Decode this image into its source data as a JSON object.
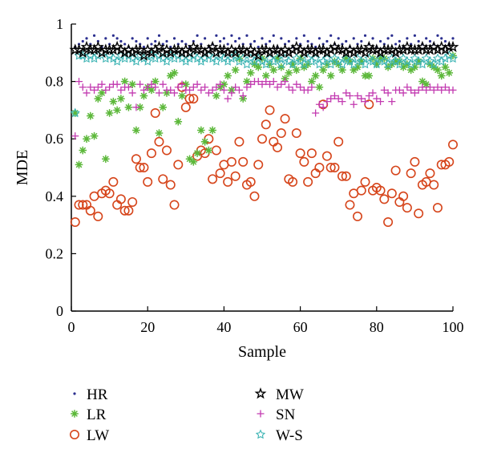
{
  "chart_data": {
    "type": "scatter",
    "xlabel": "Sample",
    "ylabel": "MDE",
    "xlim": [
      0,
      100
    ],
    "ylim": [
      0,
      1
    ],
    "xticks": [
      "0",
      "20",
      "40",
      "60",
      "80",
      "100"
    ],
    "yticks": [
      "0",
      "0.2",
      "0.4",
      "0.6",
      "0.8",
      "1"
    ],
    "grid": false,
    "legend_position": "bottom",
    "series": [
      {
        "name": "HR",
        "marker": "dot",
        "color": "#2b2f8f",
        "x": [
          1,
          2,
          3,
          4,
          5,
          6,
          7,
          8,
          9,
          10,
          11,
          12,
          13,
          14,
          15,
          16,
          17,
          18,
          19,
          20,
          21,
          22,
          23,
          24,
          25,
          26,
          27,
          28,
          29,
          30,
          31,
          32,
          33,
          34,
          35,
          36,
          37,
          38,
          39,
          40,
          41,
          42,
          43,
          44,
          45,
          46,
          47,
          48,
          49,
          50,
          51,
          52,
          53,
          54,
          55,
          56,
          57,
          58,
          59,
          60,
          61,
          62,
          63,
          64,
          65,
          66,
          67,
          68,
          69,
          70,
          71,
          72,
          73,
          74,
          75,
          76,
          77,
          78,
          79,
          80,
          81,
          82,
          83,
          84,
          85,
          86,
          87,
          88,
          89,
          90,
          91,
          92,
          93,
          94,
          95,
          96,
          97,
          98,
          99,
          100
        ],
        "y": [
          0.92,
          0.93,
          0.94,
          0.95,
          0.93,
          0.96,
          0.94,
          0.92,
          0.95,
          0.93,
          0.96,
          0.95,
          0.94,
          0.93,
          0.92,
          0.95,
          0.94,
          0.93,
          0.92,
          0.95,
          0.93,
          0.94,
          0.96,
          0.93,
          0.94,
          0.92,
          0.95,
          0.93,
          0.94,
          0.93,
          0.92,
          0.94,
          0.96,
          0.93,
          0.95,
          0.92,
          0.93,
          0.96,
          0.94,
          0.95,
          0.93,
          0.96,
          0.94,
          0.95,
          0.93,
          0.96,
          0.93,
          0.94,
          0.92,
          0.95,
          0.93,
          0.94,
          0.96,
          0.92,
          0.95,
          0.93,
          0.94,
          0.92,
          0.95,
          0.93,
          0.96,
          0.94,
          0.93,
          0.92,
          0.95,
          0.93,
          0.94,
          0.96,
          0.93,
          0.95,
          0.93,
          0.94,
          0.92,
          0.95,
          0.93,
          0.94,
          0.96,
          0.93,
          0.95,
          0.92,
          0.94,
          0.93,
          0.95,
          0.96,
          0.93,
          0.94,
          0.92,
          0.95,
          0.93,
          0.96,
          0.94,
          0.93,
          0.95,
          0.94,
          0.93,
          0.96,
          0.95,
          0.94,
          0.93,
          0.95
        ]
      },
      {
        "name": "LR",
        "marker": "asterisk",
        "color": "#5cb83a",
        "x": [
          1,
          2,
          3,
          4,
          5,
          6,
          7,
          8,
          9,
          10,
          11,
          12,
          13,
          14,
          15,
          16,
          17,
          18,
          19,
          20,
          21,
          22,
          23,
          24,
          25,
          26,
          27,
          28,
          29,
          30,
          31,
          32,
          33,
          34,
          35,
          36,
          37,
          38,
          39,
          40,
          41,
          42,
          43,
          44,
          45,
          46,
          47,
          48,
          49,
          50,
          51,
          52,
          53,
          54,
          55,
          56,
          57,
          58,
          59,
          60,
          61,
          62,
          63,
          64,
          65,
          66,
          67,
          68,
          69,
          70,
          71,
          72,
          73,
          74,
          75,
          76,
          77,
          78,
          79,
          80,
          81,
          82,
          83,
          84,
          85,
          86,
          87,
          88,
          89,
          90,
          91,
          92,
          93,
          94,
          95,
          96,
          97,
          98,
          99,
          100
        ],
        "y": [
          0.69,
          0.51,
          0.56,
          0.6,
          0.68,
          0.61,
          0.74,
          0.76,
          0.53,
          0.69,
          0.73,
          0.7,
          0.74,
          0.8,
          0.71,
          0.79,
          0.63,
          0.71,
          0.75,
          0.78,
          0.77,
          0.8,
          0.62,
          0.71,
          0.76,
          0.82,
          0.83,
          0.66,
          0.75,
          0.79,
          0.53,
          0.52,
          0.55,
          0.63,
          0.59,
          0.56,
          0.63,
          0.75,
          0.78,
          0.79,
          0.82,
          0.77,
          0.84,
          0.88,
          0.74,
          0.8,
          0.83,
          0.86,
          0.85,
          0.88,
          0.82,
          0.86,
          0.84,
          0.88,
          0.85,
          0.81,
          0.83,
          0.86,
          0.84,
          0.88,
          0.85,
          0.86,
          0.8,
          0.82,
          0.78,
          0.84,
          0.86,
          0.82,
          0.87,
          0.86,
          0.84,
          0.88,
          0.87,
          0.84,
          0.85,
          0.87,
          0.82,
          0.82,
          0.88,
          0.86,
          0.88,
          0.88,
          0.85,
          0.86,
          0.87,
          0.87,
          0.85,
          0.86,
          0.84,
          0.85,
          0.87,
          0.8,
          0.79,
          0.86,
          0.85,
          0.84,
          0.82,
          0.85,
          0.83,
          0.89
        ]
      },
      {
        "name": "LW",
        "marker": "circle",
        "color": "#d6451b",
        "x": [
          1,
          2,
          3,
          4,
          5,
          6,
          7,
          8,
          9,
          10,
          11,
          12,
          13,
          14,
          15,
          16,
          17,
          18,
          19,
          20,
          21,
          22,
          23,
          24,
          25,
          26,
          27,
          28,
          29,
          30,
          31,
          32,
          33,
          34,
          35,
          36,
          37,
          38,
          39,
          40,
          41,
          42,
          43,
          44,
          45,
          46,
          47,
          48,
          49,
          50,
          51,
          52,
          53,
          54,
          55,
          56,
          57,
          58,
          59,
          60,
          61,
          62,
          63,
          64,
          65,
          66,
          67,
          68,
          69,
          70,
          71,
          72,
          73,
          74,
          75,
          76,
          77,
          78,
          79,
          80,
          81,
          82,
          83,
          84,
          85,
          86,
          87,
          88,
          89,
          90,
          91,
          92,
          93,
          94,
          95,
          96,
          97,
          98,
          99,
          100
        ],
        "y": [
          0.31,
          0.37,
          0.37,
          0.37,
          0.35,
          0.4,
          0.33,
          0.41,
          0.42,
          0.41,
          0.45,
          0.37,
          0.39,
          0.35,
          0.35,
          0.38,
          0.53,
          0.5,
          0.5,
          0.45,
          0.55,
          0.69,
          0.59,
          0.46,
          0.56,
          0.44,
          0.37,
          0.51,
          0.78,
          0.71,
          0.74,
          0.74,
          0.54,
          0.56,
          0.55,
          0.6,
          0.46,
          0.56,
          0.48,
          0.51,
          0.45,
          0.52,
          0.47,
          0.59,
          0.52,
          0.44,
          0.45,
          0.4,
          0.51,
          0.6,
          0.65,
          0.7,
          0.59,
          0.57,
          0.62,
          0.67,
          0.46,
          0.45,
          0.62,
          0.55,
          0.52,
          0.45,
          0.55,
          0.48,
          0.5,
          0.72,
          0.54,
          0.5,
          0.5,
          0.59,
          0.47,
          0.47,
          0.37,
          0.41,
          0.33,
          0.42,
          0.45,
          0.72,
          0.42,
          0.43,
          0.42,
          0.39,
          0.31,
          0.41,
          0.49,
          0.38,
          0.4,
          0.36,
          0.48,
          0.52,
          0.34,
          0.44,
          0.45,
          0.48,
          0.44,
          0.36,
          0.51,
          0.51,
          0.52,
          0.58
        ]
      },
      {
        "name": "MW",
        "marker": "star",
        "color": "#000000",
        "x": [
          1,
          2,
          3,
          4,
          5,
          6,
          7,
          8,
          9,
          10,
          11,
          12,
          13,
          14,
          15,
          16,
          17,
          18,
          19,
          20,
          21,
          22,
          23,
          24,
          25,
          26,
          27,
          28,
          29,
          30,
          31,
          32,
          33,
          34,
          35,
          36,
          37,
          38,
          39,
          40,
          41,
          42,
          43,
          44,
          45,
          46,
          47,
          48,
          49,
          50,
          51,
          52,
          53,
          54,
          55,
          56,
          57,
          58,
          59,
          60,
          61,
          62,
          63,
          64,
          65,
          66,
          67,
          68,
          69,
          70,
          71,
          72,
          73,
          74,
          75,
          76,
          77,
          78,
          79,
          80,
          81,
          82,
          83,
          84,
          85,
          86,
          87,
          88,
          89,
          90,
          91,
          92,
          93,
          94,
          95,
          96,
          97,
          98,
          99,
          100
        ],
        "y": [
          0.91,
          0.91,
          0.9,
          0.92,
          0.91,
          0.91,
          0.92,
          0.9,
          0.91,
          0.91,
          0.91,
          0.92,
          0.91,
          0.9,
          0.91,
          0.9,
          0.91,
          0.91,
          0.89,
          0.91,
          0.9,
          0.91,
          0.92,
          0.9,
          0.91,
          0.9,
          0.91,
          0.91,
          0.9,
          0.91,
          0.9,
          0.92,
          0.91,
          0.91,
          0.9,
          0.91,
          0.92,
          0.9,
          0.91,
          0.91,
          0.9,
          0.91,
          0.9,
          0.91,
          0.91,
          0.9,
          0.91,
          0.9,
          0.89,
          0.91,
          0.91,
          0.9,
          0.91,
          0.91,
          0.9,
          0.91,
          0.9,
          0.91,
          0.92,
          0.91,
          0.9,
          0.91,
          0.91,
          0.9,
          0.91,
          0.91,
          0.9,
          0.91,
          0.92,
          0.91,
          0.91,
          0.9,
          0.91,
          0.9,
          0.91,
          0.91,
          0.9,
          0.92,
          0.91,
          0.91,
          0.9,
          0.91,
          0.91,
          0.91,
          0.9,
          0.91,
          0.91,
          0.92,
          0.91,
          0.91,
          0.91,
          0.92,
          0.91,
          0.91,
          0.92,
          0.91,
          0.92,
          0.91,
          0.92,
          0.92
        ]
      },
      {
        "name": "SN",
        "marker": "plus",
        "color": "#c23ab0",
        "x": [
          1,
          2,
          3,
          4,
          5,
          6,
          7,
          8,
          9,
          10,
          11,
          12,
          13,
          14,
          15,
          16,
          17,
          18,
          19,
          20,
          21,
          22,
          23,
          24,
          25,
          26,
          27,
          28,
          29,
          30,
          31,
          32,
          33,
          34,
          35,
          36,
          37,
          38,
          39,
          40,
          41,
          42,
          43,
          44,
          45,
          46,
          47,
          48,
          49,
          50,
          51,
          52,
          53,
          54,
          55,
          56,
          57,
          58,
          59,
          60,
          61,
          62,
          63,
          64,
          65,
          66,
          67,
          68,
          69,
          70,
          71,
          72,
          73,
          74,
          75,
          76,
          77,
          78,
          79,
          80,
          81,
          82,
          83,
          84,
          85,
          86,
          87,
          88,
          89,
          90,
          91,
          92,
          93,
          94,
          95,
          96,
          97,
          98,
          99,
          100
        ],
        "y": [
          0.61,
          0.8,
          0.78,
          0.76,
          0.78,
          0.77,
          0.78,
          0.79,
          0.77,
          0.78,
          0.79,
          0.79,
          0.77,
          0.78,
          0.78,
          0.76,
          0.71,
          0.79,
          0.77,
          0.78,
          0.79,
          0.78,
          0.76,
          0.79,
          0.77,
          0.77,
          0.76,
          0.78,
          0.79,
          0.77,
          0.77,
          0.78,
          0.79,
          0.77,
          0.78,
          0.76,
          0.77,
          0.78,
          0.79,
          0.77,
          0.74,
          0.76,
          0.78,
          0.77,
          0.75,
          0.78,
          0.79,
          0.8,
          0.8,
          0.79,
          0.8,
          0.79,
          0.8,
          0.78,
          0.79,
          0.8,
          0.78,
          0.77,
          0.79,
          0.78,
          0.77,
          0.77,
          0.78,
          0.69,
          0.72,
          0.71,
          0.73,
          0.74,
          0.75,
          0.74,
          0.73,
          0.76,
          0.75,
          0.72,
          0.75,
          0.74,
          0.73,
          0.75,
          0.76,
          0.74,
          0.73,
          0.77,
          0.76,
          0.73,
          0.77,
          0.77,
          0.76,
          0.78,
          0.77,
          0.76,
          0.77,
          0.78,
          0.77,
          0.78,
          0.77,
          0.78,
          0.77,
          0.78,
          0.77,
          0.77
        ]
      },
      {
        "name": "W-S",
        "marker": "star-outline",
        "color": "#3db4b4",
        "x": [
          1,
          2,
          3,
          4,
          5,
          6,
          7,
          8,
          9,
          10,
          11,
          12,
          13,
          14,
          15,
          16,
          17,
          18,
          19,
          20,
          21,
          22,
          23,
          24,
          25,
          26,
          27,
          28,
          29,
          30,
          31,
          32,
          33,
          34,
          35,
          36,
          37,
          38,
          39,
          40,
          41,
          42,
          43,
          44,
          45,
          46,
          47,
          48,
          49,
          50,
          51,
          52,
          53,
          54,
          55,
          56,
          57,
          58,
          59,
          60,
          61,
          62,
          63,
          64,
          65,
          66,
          67,
          68,
          69,
          70,
          71,
          72,
          73,
          74,
          75,
          76,
          77,
          78,
          79,
          80,
          81,
          82,
          83,
          84,
          85,
          86,
          87,
          88,
          89,
          90,
          91,
          92,
          93,
          94,
          95,
          96,
          97,
          98,
          99,
          100
        ],
        "y": [
          0.69,
          0.89,
          0.89,
          0.88,
          0.89,
          0.88,
          0.89,
          0.9,
          0.88,
          0.89,
          0.88,
          0.87,
          0.89,
          0.88,
          0.89,
          0.88,
          0.87,
          0.89,
          0.88,
          0.87,
          0.89,
          0.88,
          0.89,
          0.88,
          0.87,
          0.89,
          0.88,
          0.89,
          0.88,
          0.87,
          0.88,
          0.89,
          0.88,
          0.87,
          0.88,
          0.89,
          0.88,
          0.87,
          0.89,
          0.88,
          0.87,
          0.88,
          0.89,
          0.87,
          0.88,
          0.86,
          0.88,
          0.87,
          0.88,
          0.87,
          0.86,
          0.88,
          0.87,
          0.88,
          0.86,
          0.88,
          0.87,
          0.86,
          0.88,
          0.87,
          0.86,
          0.88,
          0.87,
          0.88,
          0.86,
          0.87,
          0.88,
          0.86,
          0.88,
          0.87,
          0.86,
          0.88,
          0.87,
          0.86,
          0.88,
          0.87,
          0.86,
          0.88,
          0.87,
          0.86,
          0.88,
          0.87,
          0.86,
          0.88,
          0.87,
          0.86,
          0.88,
          0.87,
          0.86,
          0.88,
          0.87,
          0.86,
          0.88,
          0.87,
          0.86,
          0.88,
          0.87,
          0.88,
          0.89,
          0.88
        ]
      }
    ]
  }
}
